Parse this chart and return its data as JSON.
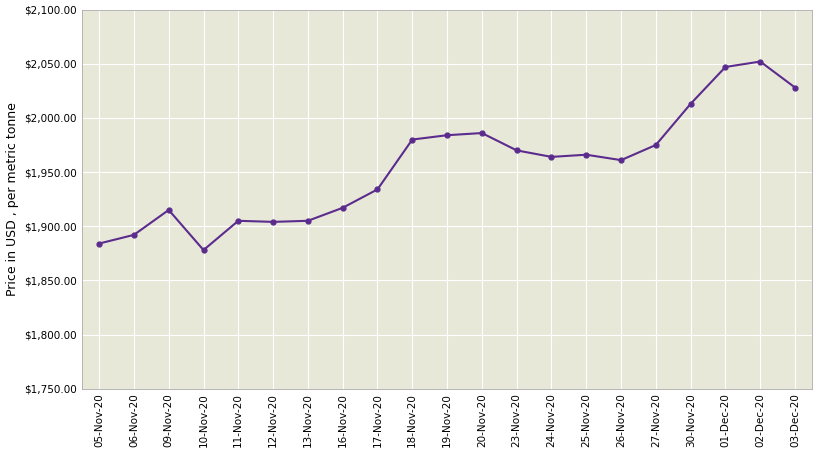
{
  "dates": [
    "05-Nov-20",
    "06-Nov-20",
    "09-Nov-20",
    "10-Nov-20",
    "11-Nov-20",
    "12-Nov-20",
    "13-Nov-20",
    "16-Nov-20",
    "17-Nov-20",
    "18-Nov-20",
    "19-Nov-20",
    "20-Nov-20",
    "23-Nov-20",
    "24-Nov-20",
    "25-Nov-20",
    "26-Nov-20",
    "27-Nov-20",
    "30-Nov-20",
    "01-Dec-20",
    "02-Dec-20",
    "03-Dec-20"
  ],
  "values": [
    1884,
    1892,
    1915,
    1878,
    1905,
    1904,
    1905,
    1917,
    1934,
    1980,
    1984,
    1986,
    1970,
    1964,
    1966,
    1961,
    1975,
    2013,
    2047,
    2052,
    2028
  ],
  "line_color": "#5B2C8D",
  "marker": "o",
  "marker_size": 3.5,
  "ylabel": "Price in USD , per metric tonne",
  "ylim_min": 1750,
  "ylim_max": 2100,
  "ytick_step": 50,
  "plot_bg_color": "#E8E8D8",
  "figure_bg_color": "#FFFFFF",
  "grid_color": "#FFFFFF",
  "tick_label_fontsize": 7.5,
  "ylabel_fontsize": 9,
  "line_width": 1.5
}
